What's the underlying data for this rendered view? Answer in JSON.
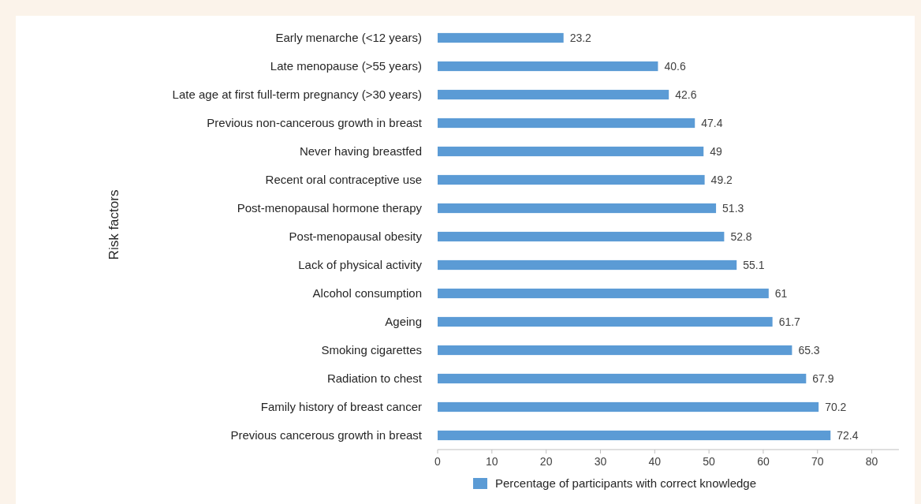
{
  "chart_data": {
    "type": "bar",
    "orientation": "horizontal",
    "ylabel": "Risk factors",
    "categories": [
      "Early menarche (<12 years)",
      "Late menopause (>55 years)",
      "Late age at first full-term pregnancy (>30 years)",
      "Previous non-cancerous growth in breast",
      "Never having breastfed",
      "Recent oral contraceptive use",
      "Post-menopausal hormone therapy",
      "Post-menopausal obesity",
      "Lack of physical activity",
      "Alcohol consumption",
      "Ageing",
      "Smoking cigarettes",
      "Radiation to chest",
      "Family history of breast cancer",
      "Previous cancerous growth in breast"
    ],
    "series": [
      {
        "name": "Percentage of participants with correct knowledge",
        "color": "#5b9bd5",
        "values": [
          23.2,
          40.6,
          42.6,
          47.4,
          49,
          49.2,
          51.3,
          52.8,
          55.1,
          61,
          61.7,
          65.3,
          67.9,
          70.2,
          72.4
        ]
      }
    ],
    "xlim": [
      0,
      85
    ],
    "xticks": [
      0,
      10,
      20,
      30,
      40,
      50,
      60,
      70,
      80
    ],
    "data_labels": true,
    "legend": "bottom",
    "grid": false
  }
}
